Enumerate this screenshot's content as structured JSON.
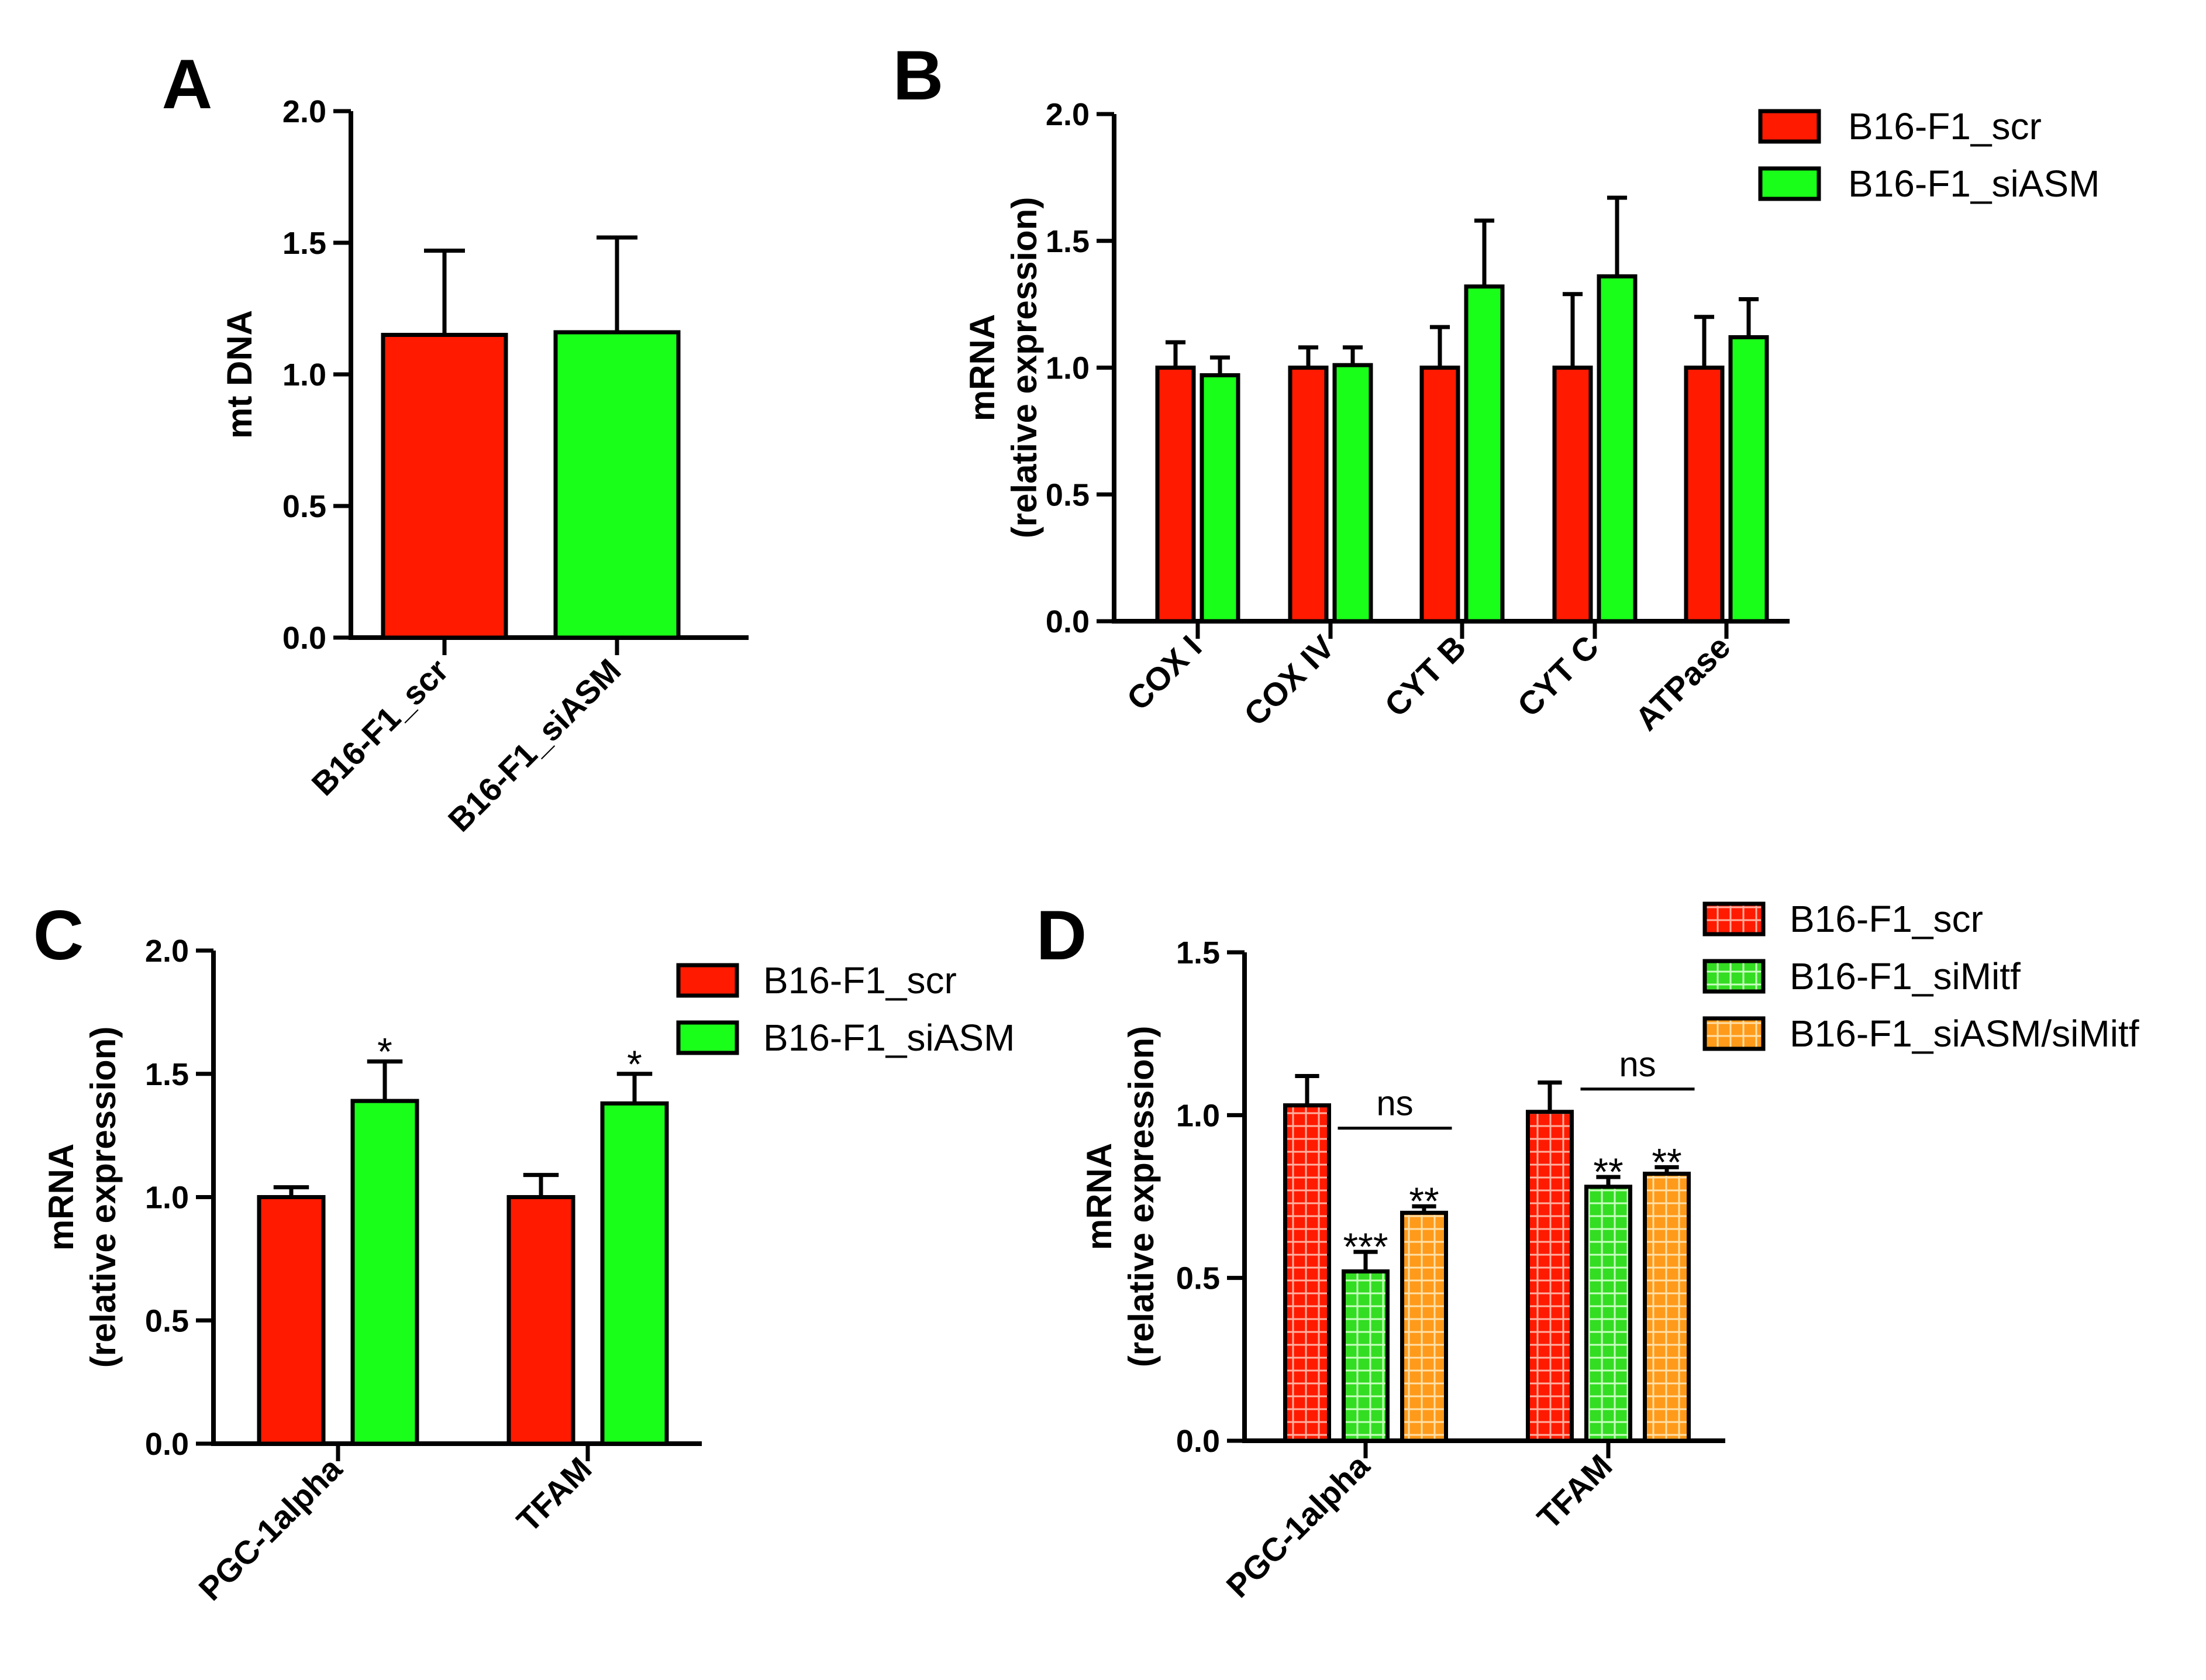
{
  "colors": {
    "scr": "#ff1a00",
    "siASM": "#1aff1a",
    "siMitf": "#33dd22",
    "siASM_siMitf": "#ff9a1a",
    "axis": "#000000"
  },
  "chart_data": [
    {
      "panel": "A",
      "type": "bar",
      "ylabel_lines": [
        "mt DNA"
      ],
      "ylim": [
        0,
        2.0
      ],
      "yticks": [
        "0.0",
        "0.5",
        "1.0",
        "1.5",
        "2.0"
      ],
      "categories": [
        "B16-F1_scr",
        "B16-F1_siASM"
      ],
      "series": [
        {
          "name": "B16-F1_scr",
          "color_key": "scr",
          "values": [
            1.15,
            null
          ],
          "errors": [
            0.32,
            null
          ]
        },
        {
          "name": "B16-F1_siASM",
          "color_key": "siASM",
          "values": [
            null,
            1.16
          ],
          "errors": [
            null,
            0.36
          ]
        }
      ],
      "legend": null
    },
    {
      "panel": "B",
      "type": "bar",
      "ylabel_lines": [
        "mRNA",
        "(relative expression)"
      ],
      "ylim": [
        0,
        2.0
      ],
      "yticks": [
        "0.0",
        "0.5",
        "1.0",
        "1.5",
        "2.0"
      ],
      "categories": [
        "COX I",
        "COX IV",
        "CYT B",
        "CYT C",
        "ATPase"
      ],
      "series": [
        {
          "name": "B16-F1_scr",
          "color_key": "scr",
          "values": [
            1.0,
            1.0,
            1.0,
            1.0,
            1.0
          ],
          "errors": [
            0.1,
            0.08,
            0.16,
            0.29,
            0.2
          ]
        },
        {
          "name": "B16-F1_siASM",
          "color_key": "siASM",
          "values": [
            0.97,
            1.01,
            1.32,
            1.36,
            1.12
          ],
          "errors": [
            0.07,
            0.07,
            0.26,
            0.31,
            0.15
          ]
        }
      ],
      "legend": {
        "entries": [
          "B16-F1_scr",
          "B16-F1_siASM"
        ],
        "placement": "top-right outside"
      }
    },
    {
      "panel": "C",
      "type": "bar",
      "ylabel_lines": [
        "mRNA",
        "(relative expression)"
      ],
      "ylim": [
        0,
        2.0
      ],
      "yticks": [
        "0.0",
        "0.5",
        "1.0",
        "1.5",
        "2.0"
      ],
      "categories": [
        "PGC-1alpha",
        "TFAM"
      ],
      "series": [
        {
          "name": "B16-F1_scr",
          "color_key": "scr",
          "values": [
            1.0,
            1.0
          ],
          "errors": [
            0.04,
            0.09
          ]
        },
        {
          "name": "B16-F1_siASM",
          "color_key": "siASM",
          "values": [
            1.39,
            1.38
          ],
          "errors": [
            0.16,
            0.12
          ]
        }
      ],
      "annotations": [
        {
          "category": 0,
          "series": 1,
          "text": "*"
        },
        {
          "category": 1,
          "series": 1,
          "text": "*"
        }
      ],
      "legend": {
        "entries": [
          "B16-F1_scr",
          "B16-F1_siASM"
        ],
        "placement": "top-right outside"
      }
    },
    {
      "panel": "D",
      "type": "bar",
      "ylabel_lines": [
        "mRNA",
        "(relative expression)"
      ],
      "ylim": [
        0,
        1.5
      ],
      "yticks": [
        "0.0",
        "0.5",
        "1.0",
        "1.5"
      ],
      "categories": [
        "PGC-1alpha",
        "TFAM"
      ],
      "series": [
        {
          "name": "B16-F1_scr",
          "color_key": "scr",
          "hatched": true,
          "values": [
            1.03,
            1.01
          ],
          "errors": [
            0.09,
            0.09
          ]
        },
        {
          "name": "B16-F1_siMitf",
          "color_key": "siMitf",
          "hatched": true,
          "values": [
            0.52,
            0.78
          ],
          "errors": [
            0.06,
            0.03
          ]
        },
        {
          "name": "B16-F1_siASM/siMitf",
          "color_key": "siASM_siMitf",
          "hatched": true,
          "values": [
            0.7,
            0.82
          ],
          "errors": [
            0.02,
            0.02
          ]
        }
      ],
      "annotations": [
        {
          "category": 0,
          "series": 1,
          "text": "***"
        },
        {
          "category": 0,
          "series": 2,
          "text": "**"
        },
        {
          "category": 1,
          "series": 1,
          "text": "**"
        },
        {
          "category": 1,
          "series": 2,
          "text": "**"
        }
      ],
      "brackets": [
        {
          "category": 0,
          "from_series": 1,
          "to_series": 2,
          "y": 0.96,
          "text": "ns"
        },
        {
          "category": 1,
          "from_series": 1,
          "to_series": 2,
          "y": 1.08,
          "text": "ns"
        }
      ],
      "legend": {
        "entries": [
          "B16-F1_scr",
          "B16-F1_siMitf",
          "B16-F1_siASM/siMitf"
        ],
        "placement": "top-right outside"
      }
    }
  ]
}
